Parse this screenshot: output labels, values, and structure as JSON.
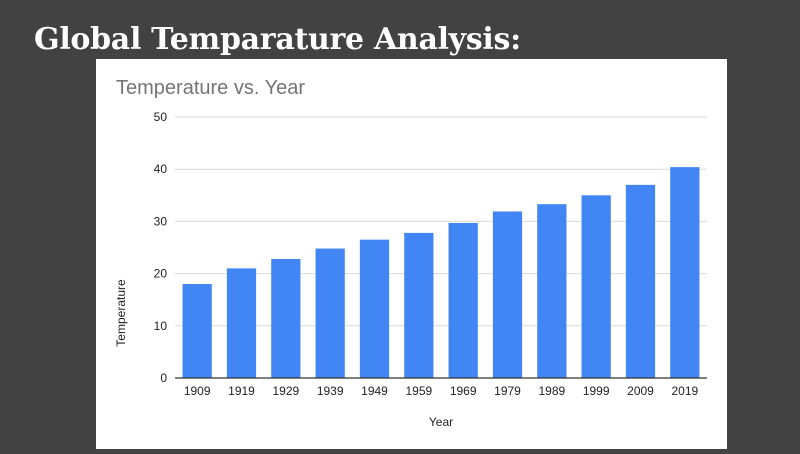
{
  "slide": {
    "title": "Global Temparature Analysis:"
  },
  "chart_data": {
    "type": "bar",
    "title": "Temperature vs. Year",
    "xlabel": "Year",
    "ylabel": "Temperature",
    "categories": [
      "1909",
      "1919",
      "1929",
      "1939",
      "1949",
      "1959",
      "1969",
      "1979",
      "1989",
      "1999",
      "2009",
      "2019"
    ],
    "values": [
      18,
      21,
      22.8,
      24.8,
      26.5,
      27.8,
      29.7,
      31.9,
      33.3,
      35,
      37,
      40.4
    ],
    "ylim": [
      0,
      50
    ],
    "yticks": [
      0,
      10,
      20,
      30,
      40,
      50
    ],
    "bar_color": "#4285f4",
    "grid": true,
    "legend": "none"
  }
}
